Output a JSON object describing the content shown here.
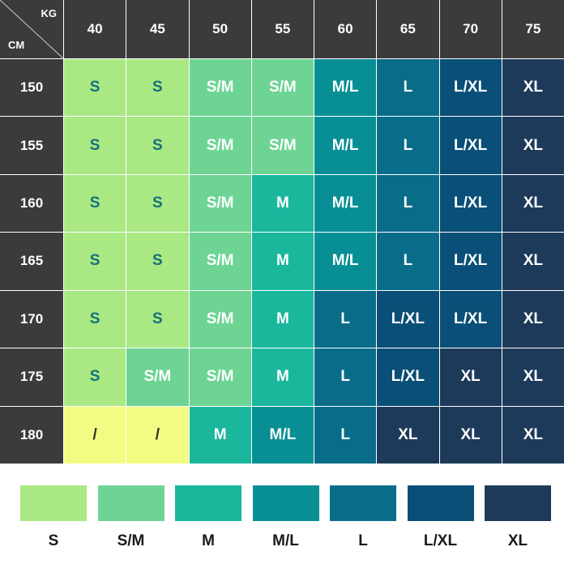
{
  "chart_data": {
    "type": "table",
    "corner": {
      "col_unit": "KG",
      "row_unit": "CM"
    },
    "weights": [
      "40",
      "45",
      "50",
      "55",
      "60",
      "65",
      "70",
      "75"
    ],
    "heights": [
      "150",
      "155",
      "160",
      "165",
      "170",
      "175",
      "180"
    ],
    "sizes": [
      [
        "S",
        "S",
        "S/M",
        "S/M",
        "M/L",
        "L",
        "L/XL",
        "XL"
      ],
      [
        "S",
        "S",
        "S/M",
        "S/M",
        "M/L",
        "L",
        "L/XL",
        "XL"
      ],
      [
        "S",
        "S",
        "S/M",
        "M",
        "M/L",
        "L",
        "L/XL",
        "XL"
      ],
      [
        "S",
        "S",
        "S/M",
        "M",
        "M/L",
        "L",
        "L/XL",
        "XL"
      ],
      [
        "S",
        "S",
        "S/M",
        "M",
        "L",
        "L/XL",
        "L/XL",
        "XL"
      ],
      [
        "S",
        "S/M",
        "S/M",
        "M",
        "L",
        "L/XL",
        "XL",
        "XL"
      ],
      [
        "/",
        "/",
        "M",
        "M/L",
        "L",
        "XL",
        "XL",
        "XL"
      ]
    ],
    "legend": [
      {
        "label": "S",
        "color": "#a9e883"
      },
      {
        "label": "S/M",
        "color": "#6dd494"
      },
      {
        "label": "M",
        "color": "#1bb79d"
      },
      {
        "label": "M/L",
        "color": "#088f95"
      },
      {
        "label": "L",
        "color": "#096d8a"
      },
      {
        "label": "L/XL",
        "color": "#0a4f77"
      },
      {
        "label": "XL",
        "color": "#1e3a5b"
      }
    ],
    "na_color": "#f2fc83",
    "header_color": "#3b3b3b"
  }
}
